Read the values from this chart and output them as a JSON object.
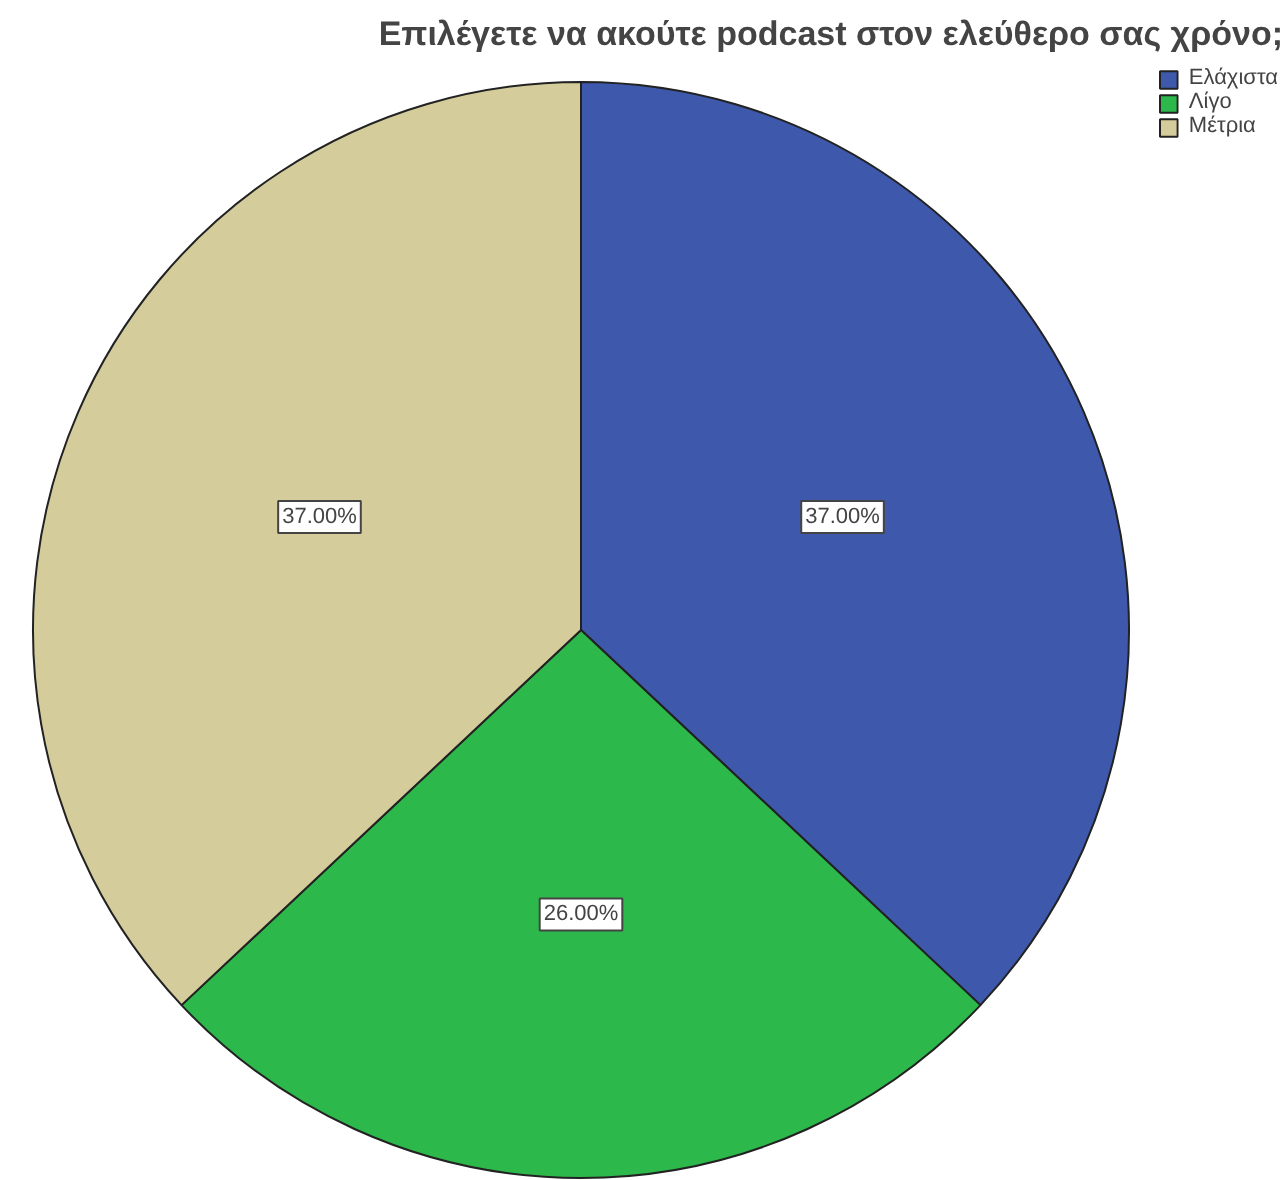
{
  "chart_data": {
    "type": "pie",
    "title": "Επιλέγετε να ακούτε podcast στον ελεύθερο σας χρόνο;",
    "categories": [
      "Ελάχιστα",
      "Λίγο",
      "Μέτρια"
    ],
    "values": [
      37,
      26,
      37
    ],
    "colors": [
      "#3e58ac",
      "#2db84b",
      "#d4cd9b"
    ],
    "value_labels": [
      "37.00%",
      "26.00%",
      "37.00%"
    ],
    "legend": "top right"
  }
}
